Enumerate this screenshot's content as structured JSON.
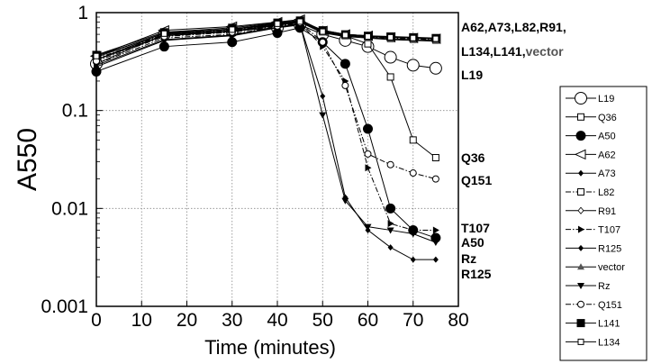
{
  "chart_data": {
    "type": "line",
    "title": "",
    "xlabel": "Time (minutes)",
    "ylabel": "A550",
    "xlim": [
      0,
      80
    ],
    "ylim": [
      0.001,
      1
    ],
    "yscale": "log",
    "grid": true,
    "x_ticks": [
      "0",
      "10",
      "20",
      "30",
      "40",
      "50",
      "60",
      "70",
      "80"
    ],
    "y_ticks": [
      "0.001",
      "0.01",
      "0.1",
      "1"
    ],
    "legend_position": "right",
    "annotations": [
      {
        "text": "A62,A73,L82,R91,",
        "parts": [
          {
            "t": "A62,A73,L82,R91,"
          }
        ]
      },
      {
        "text": "L134,L141,vector",
        "parts": [
          {
            "t": "L134,L141,",
            "color": "#000000"
          },
          {
            "t": "vector",
            "color": "#555555"
          }
        ]
      },
      {
        "text": "L19",
        "parts": [
          {
            "t": "L19"
          }
        ]
      },
      {
        "text": "Q36",
        "parts": [
          {
            "t": "Q36"
          }
        ]
      },
      {
        "text": "Q151",
        "parts": [
          {
            "t": "Q151"
          }
        ]
      },
      {
        "text": "T107",
        "parts": [
          {
            "t": "T107"
          }
        ]
      },
      {
        "text": "A50",
        "parts": [
          {
            "t": "A50"
          }
        ]
      },
      {
        "text": "Rz",
        "parts": [
          {
            "t": "Rz"
          }
        ]
      },
      {
        "text": "R125",
        "parts": [
          {
            "t": "R125"
          }
        ]
      }
    ],
    "series": [
      {
        "name": "L19",
        "marker": "circle-open",
        "dash": "solid",
        "x": [
          0,
          15,
          30,
          40,
          45,
          50,
          55,
          60,
          65,
          70,
          75
        ],
        "y": [
          0.3,
          0.6,
          0.65,
          0.7,
          0.75,
          0.6,
          0.52,
          0.45,
          0.35,
          0.29,
          0.27
        ]
      },
      {
        "name": "Q36",
        "marker": "square-half",
        "dash": "solid",
        "x": [
          0,
          15,
          30,
          40,
          45,
          50,
          55,
          60,
          65,
          70,
          75
        ],
        "y": [
          0.33,
          0.62,
          0.68,
          0.75,
          0.8,
          0.65,
          0.58,
          0.48,
          0.22,
          0.05,
          0.033
        ]
      },
      {
        "name": "A50",
        "marker": "circle-filled",
        "dash": "solid",
        "x": [
          0,
          15,
          30,
          40,
          45,
          50,
          55,
          60,
          65,
          70,
          75
        ],
        "y": [
          0.25,
          0.45,
          0.5,
          0.62,
          0.7,
          0.5,
          0.3,
          0.065,
          0.01,
          0.006,
          0.005
        ]
      },
      {
        "name": "A62",
        "marker": "triangle-left-open",
        "dash": "solid",
        "x": [
          0,
          15,
          30,
          40,
          45,
          50,
          55,
          60,
          65,
          70,
          75
        ],
        "y": [
          0.36,
          0.66,
          0.72,
          0.8,
          0.85,
          0.65,
          0.6,
          0.58,
          0.56,
          0.55,
          0.54
        ]
      },
      {
        "name": "A73",
        "marker": "diamond-filled",
        "dash": "solid",
        "x": [
          0,
          15,
          30,
          40,
          45,
          50,
          55,
          60,
          65,
          70,
          75
        ],
        "y": [
          0.33,
          0.58,
          0.64,
          0.74,
          0.8,
          0.63,
          0.58,
          0.56,
          0.54,
          0.53,
          0.52
        ]
      },
      {
        "name": "L82",
        "marker": "square-half",
        "dash": "dashdot",
        "x": [
          0,
          15,
          30,
          40,
          45,
          50,
          55,
          60,
          65,
          70,
          75
        ],
        "y": [
          0.34,
          0.6,
          0.66,
          0.76,
          0.8,
          0.64,
          0.59,
          0.57,
          0.55,
          0.54,
          0.53
        ]
      },
      {
        "name": "R91",
        "marker": "diamond-open",
        "dash": "solid",
        "x": [
          0,
          15,
          30,
          40,
          45,
          50,
          55,
          60,
          65,
          70,
          75
        ],
        "y": [
          0.35,
          0.62,
          0.68,
          0.78,
          0.82,
          0.66,
          0.6,
          0.58,
          0.56,
          0.55,
          0.54
        ]
      },
      {
        "name": "T107",
        "marker": "triangle-right-filled",
        "dash": "dashdot",
        "x": [
          0,
          15,
          30,
          40,
          45,
          50,
          55,
          60,
          65,
          70,
          75
        ],
        "y": [
          0.3,
          0.55,
          0.6,
          0.72,
          0.78,
          0.45,
          0.2,
          0.026,
          0.007,
          0.006,
          0.006
        ]
      },
      {
        "name": "R125",
        "marker": "diamond-filled",
        "dash": "solid",
        "x": [
          0,
          15,
          30,
          40,
          45,
          50,
          55,
          60,
          65,
          70,
          75
        ],
        "y": [
          0.28,
          0.52,
          0.58,
          0.7,
          0.76,
          0.14,
          0.013,
          0.006,
          0.004,
          0.003,
          0.003
        ]
      },
      {
        "name": "vector",
        "marker": "triangle-up-filled",
        "dash": "solid",
        "x": [
          0,
          15,
          30,
          40,
          45,
          50,
          55,
          60,
          65,
          70,
          75
        ],
        "y": [
          0.33,
          0.59,
          0.65,
          0.75,
          0.8,
          0.62,
          0.57,
          0.55,
          0.53,
          0.52,
          0.51
        ]
      },
      {
        "name": "Rz",
        "marker": "triangle-down-filled",
        "dash": "solid",
        "x": [
          0,
          15,
          30,
          40,
          45,
          50,
          55,
          60,
          65,
          70,
          75
        ],
        "y": [
          0.29,
          0.53,
          0.59,
          0.71,
          0.77,
          0.09,
          0.012,
          0.0065,
          0.006,
          0.0055,
          0.0045
        ]
      },
      {
        "name": "Q151",
        "marker": "circle-dot",
        "dash": "dashdot",
        "x": [
          0,
          15,
          30,
          40,
          45,
          50,
          55,
          60,
          65,
          70,
          75
        ],
        "y": [
          0.32,
          0.57,
          0.63,
          0.73,
          0.79,
          0.5,
          0.18,
          0.036,
          0.028,
          0.023,
          0.02
        ]
      },
      {
        "name": "L141",
        "marker": "square-filled",
        "dash": "solid",
        "x": [
          0,
          15,
          30,
          40,
          45,
          50,
          55,
          60,
          65,
          70,
          75
        ],
        "y": [
          0.37,
          0.63,
          0.7,
          0.79,
          0.83,
          0.66,
          0.6,
          0.58,
          0.57,
          0.56,
          0.55
        ]
      },
      {
        "name": "L134",
        "marker": "square-dot",
        "dash": "solid",
        "x": [
          0,
          15,
          30,
          40,
          45,
          50,
          55,
          60,
          65,
          70,
          75
        ],
        "y": [
          0.36,
          0.61,
          0.67,
          0.77,
          0.81,
          0.64,
          0.59,
          0.57,
          0.56,
          0.55,
          0.54
        ]
      }
    ]
  }
}
